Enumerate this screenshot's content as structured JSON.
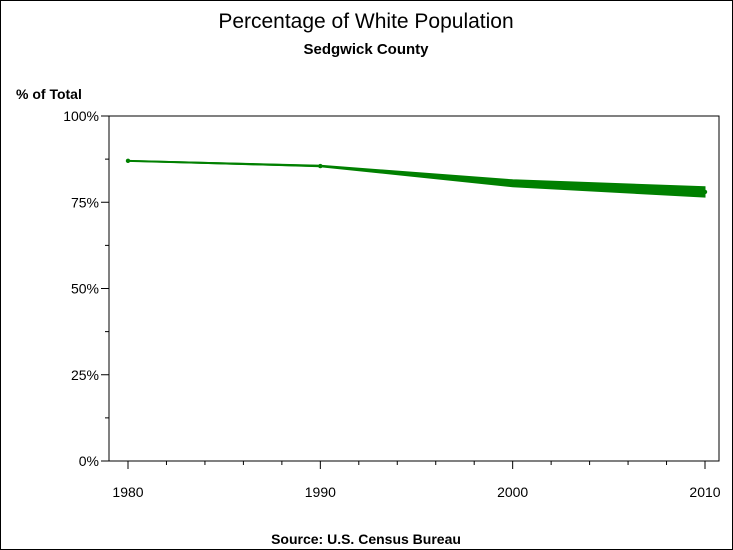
{
  "chart_data": {
    "type": "line",
    "title": "Percentage of White Population",
    "subtitle": "Sedgwick County",
    "ylabel": "% of Total",
    "xlabel": "",
    "source": "Source: U.S. Census Bureau",
    "x": [
      1980,
      1990,
      2000,
      2010
    ],
    "x_tick_labels": [
      "1980",
      "1990",
      "2000",
      "2010"
    ],
    "xlim": [
      1980,
      2010
    ],
    "x_minor_step": 2,
    "ylim": [
      0,
      100
    ],
    "y_ticks": [
      0,
      25,
      50,
      75,
      100
    ],
    "y_tick_labels": [
      "0%",
      "25%",
      "50%",
      "75%",
      "100%"
    ],
    "y_minor_step": 12.5,
    "grid": false,
    "series": [
      {
        "color": "#008000",
        "values": [
          87.0,
          85.5,
          80.5,
          78.0
        ],
        "band_low": [
          86.9,
          85.3,
          79.5,
          76.5
        ],
        "band_high": [
          87.1,
          85.7,
          81.5,
          79.5
        ]
      }
    ]
  }
}
